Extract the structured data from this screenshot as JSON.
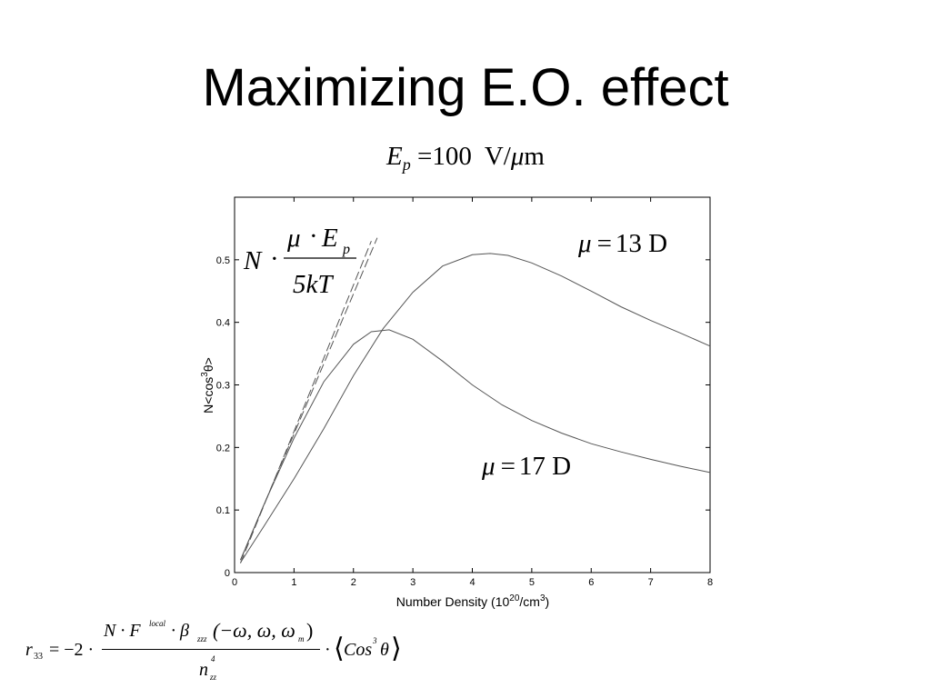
{
  "slide": {
    "title": "Maximizing E.O. effect"
  },
  "subtitle": {
    "symbol": "E",
    "subscript": "p",
    "equals": "=",
    "value": "100",
    "unit_v": "V/",
    "unit_mu": "μ",
    "unit_m": "m"
  },
  "chart_data": {
    "type": "line",
    "xlabel": "Number Density (10^20/cm^3)",
    "xlabel_parts": {
      "pre": "Number Density (10",
      "exp1": "20",
      "mid": "/cm",
      "exp2": "3",
      "post": ")"
    },
    "ylabel": "N<cos^3θ>",
    "ylabel_parts": {
      "pre": "N<cos",
      "exp": "3",
      "post": "θ>"
    },
    "xlim": [
      0,
      8
    ],
    "ylim": [
      0,
      0.6
    ],
    "xticks": [
      "0",
      "1",
      "2",
      "3",
      "4",
      "5",
      "6",
      "7",
      "8"
    ],
    "yticks": [
      "0",
      "0.1",
      "0.2",
      "0.3",
      "0.4",
      "0.5"
    ],
    "grid": false,
    "series": [
      {
        "style": "solid",
        "x": [
          0.1,
          0.5,
          1.0,
          1.5,
          2.0,
          2.5,
          3.0,
          3.5,
          4.0,
          4.3,
          4.6,
          5.0,
          5.5,
          6.0,
          6.5,
          7.0,
          7.5,
          8.0
        ],
        "y": [
          0.016,
          0.075,
          0.15,
          0.23,
          0.315,
          0.39,
          0.448,
          0.49,
          0.508,
          0.51,
          0.507,
          0.495,
          0.474,
          0.45,
          0.425,
          0.403,
          0.383,
          0.362
        ]
      },
      {
        "style": "solid",
        "x": [
          0.1,
          0.5,
          1.0,
          1.5,
          2.0,
          2.3,
          2.6,
          3.0,
          3.5,
          4.0,
          4.5,
          5.0,
          5.5,
          6.0,
          6.5,
          7.0,
          7.5,
          8.0
        ],
        "y": [
          0.02,
          0.11,
          0.215,
          0.305,
          0.365,
          0.385,
          0.388,
          0.373,
          0.338,
          0.3,
          0.268,
          0.243,
          0.223,
          0.206,
          0.193,
          0.181,
          0.17,
          0.16
        ]
      },
      {
        "style": "dashed",
        "x": [
          0.1,
          2.4
        ],
        "y": [
          0.02,
          0.535
        ]
      },
      {
        "style": "dashed",
        "x": [
          0.1,
          2.3
        ],
        "y": [
          0.015,
          0.53
        ]
      }
    ],
    "annotations": {
      "mu13": {
        "mu": "μ",
        "eq": "=",
        "value": "13 D"
      },
      "mu17": {
        "mu": "μ",
        "eq": "=",
        "value": "17 D"
      },
      "slope": {
        "n": "N",
        "dot": "·",
        "mu": "μ",
        "e": "E",
        "sub": "p",
        "den": "5kT"
      }
    }
  },
  "formula": {
    "r": "r",
    "r_sub": "33",
    "eq": "= −2 ·",
    "num_n": "N · F",
    "num_local": "local",
    "num_beta": "· β",
    "num_zzz": "zzz",
    "num_args": "(−ω, ω, ω",
    "num_m": "m",
    "num_close": ")",
    "den_n": "n",
    "den_exp": "4",
    "den_sub": "zz",
    "dot": "·",
    "cos_open": "⟨",
    "cos": "Cos",
    "cos_exp": "3",
    "theta": "θ",
    "cos_close": "⟩"
  }
}
